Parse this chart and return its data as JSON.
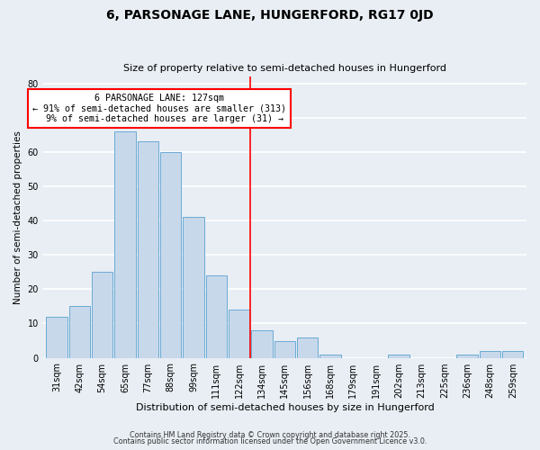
{
  "title": "6, PARSONAGE LANE, HUNGERFORD, RG17 0JD",
  "subtitle": "Size of property relative to semi-detached houses in Hungerford",
  "xlabel": "Distribution of semi-detached houses by size in Hungerford",
  "ylabel": "Number of semi-detached properties",
  "bar_labels": [
    "31sqm",
    "42sqm",
    "54sqm",
    "65sqm",
    "77sqm",
    "88sqm",
    "99sqm",
    "111sqm",
    "122sqm",
    "134sqm",
    "145sqm",
    "156sqm",
    "168sqm",
    "179sqm",
    "191sqm",
    "202sqm",
    "213sqm",
    "225sqm",
    "236sqm",
    "248sqm",
    "259sqm"
  ],
  "bar_values": [
    12,
    15,
    25,
    66,
    63,
    60,
    41,
    24,
    14,
    8,
    5,
    6,
    1,
    0,
    0,
    1,
    0,
    0,
    1,
    2,
    2
  ],
  "bar_color": "#c8d8eb",
  "bar_edge_color": "#6aaad4",
  "property_label": "6 PARSONAGE LANE: 127sqm",
  "pct_smaller": 91,
  "pct_larger": 9,
  "count_smaller": 313,
  "count_larger": 31,
  "vline_x_index": 8.48,
  "vline_color": "red",
  "annotation_box_edge_color": "red",
  "ylim": [
    0,
    82
  ],
  "yticks": [
    0,
    10,
    20,
    30,
    40,
    50,
    60,
    70,
    80
  ],
  "background_color": "#e8eef4",
  "grid_color": "white",
  "footer1": "Contains HM Land Registry data © Crown copyright and database right 2025.",
  "footer2": "Contains public sector information licensed under the Open Government Licence v3.0."
}
